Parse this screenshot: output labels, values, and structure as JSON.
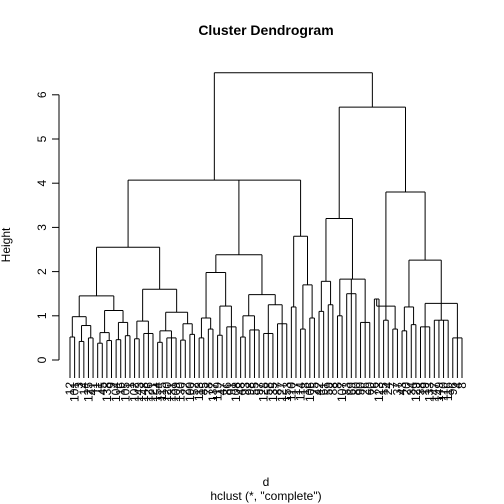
{
  "chart_data": {
    "type": "dendrogram",
    "title": "Cluster Dendrogram",
    "xlabel": "d",
    "sub": "hclust (*, \"complete\")",
    "ylabel": "Height",
    "yticks": [
      0,
      1,
      2,
      3,
      4,
      5,
      6
    ],
    "ylim": [
      0,
      6.5
    ],
    "color": "#000000",
    "root": {
      "h": 6.5,
      "c": [
        {
          "h": 4.07,
          "c": [
            {
              "h": 2.55,
              "c": [
                {
                  "h": 1.45,
                  "c": [
                    {
                      "h": 0.98,
                      "c": [
                        {
                          "h": 0.52,
                          "c": [
                            "12",
                            "101"
                          ]
                        },
                        {
                          "h": 0.78,
                          "c": [
                            {
                              "h": 0.42,
                              "c": [
                                "3",
                                "14"
                              ]
                            },
                            {
                              "h": 0.5,
                              "c": [
                                "125",
                                "41"
                              ]
                            }
                          ]
                        }
                      ]
                    },
                    {
                      "h": 1.12,
                      "c": [
                        {
                          "h": 0.62,
                          "c": [
                            {
                              "h": 0.38,
                              "c": [
                                "11",
                                "45"
                              ]
                            },
                            {
                              "h": 0.44,
                              "c": [
                                "138",
                                "9"
                              ]
                            }
                          ]
                        },
                        {
                          "h": 0.85,
                          "c": [
                            {
                              "h": 0.46,
                              "c": [
                                "104",
                                "16"
                              ]
                            },
                            {
                              "h": 0.55,
                              "c": [
                                "105",
                                "1"
                              ]
                            }
                          ]
                        }
                      ]
                    }
                  ]
                },
                {
                  "h": 1.6,
                  "c": [
                    {
                      "h": 0.88,
                      "c": [
                        {
                          "h": 0.48,
                          "c": [
                            "102",
                            "143"
                          ]
                        },
                        {
                          "h": 0.6,
                          "c": [
                            "148",
                            "126",
                            "121"
                          ]
                        }
                      ]
                    },
                    {
                      "h": 1.08,
                      "c": [
                        {
                          "h": 0.66,
                          "c": [
                            {
                              "h": 0.4,
                              "c": [
                                "154",
                                "115"
                              ]
                            },
                            {
                              "h": 0.5,
                              "c": [
                                "120",
                                "131",
                                "109"
                              ]
                            }
                          ]
                        },
                        {
                          "h": 0.82,
                          "c": [
                            {
                              "h": 0.45,
                              "c": [
                                "130",
                                "22"
                              ]
                            },
                            {
                              "h": 0.58,
                              "c": [
                                "100",
                                "52"
                              ]
                            }
                          ]
                        }
                      ]
                    }
                  ]
                }
              ]
            },
            {
              "h": 2.38,
              "c": [
                {
                  "h": 1.98,
                  "c": [
                    {
                      "h": 0.95,
                      "c": [
                        {
                          "h": 0.5,
                          "c": [
                            "113",
                            "85"
                          ]
                        },
                        {
                          "h": 0.7,
                          "c": [
                            "78",
                            "137"
                          ]
                        }
                      ]
                    },
                    {
                      "h": 1.22,
                      "c": [
                        {
                          "h": 0.56,
                          "c": [
                            "119",
                            "47"
                          ]
                        },
                        {
                          "h": 0.75,
                          "c": [
                            "86",
                            "91",
                            "108"
                          ]
                        }
                      ]
                    }
                  ]
                },
                {
                  "h": 1.48,
                  "c": [
                    {
                      "h": 1.0,
                      "c": [
                        {
                          "h": 0.52,
                          "c": [
                            "48",
                            "93"
                          ]
                        },
                        {
                          "h": 0.68,
                          "c": [
                            "98",
                            "55",
                            "97"
                          ]
                        }
                      ]
                    },
                    {
                      "h": 1.25,
                      "c": [
                        {
                          "h": 0.6,
                          "c": [
                            "128",
                            "58",
                            "135"
                          ]
                        },
                        {
                          "h": 0.82,
                          "c": [
                            "87",
                            "127",
                            "153"
                          ]
                        }
                      ]
                    }
                  ]
                }
              ]
            },
            {
              "h": 2.8,
              "c": [
                {
                  "h": 1.2,
                  "c": [
                    "110",
                    "17"
                  ]
                },
                {
                  "h": 1.7,
                  "c": [
                    {
                      "h": 0.7,
                      "c": [
                        "114",
                        "18"
                      ]
                    },
                    {
                      "h": 0.95,
                      "c": [
                        "106",
                        "25"
                      ]
                    }
                  ]
                }
              ]
            }
          ]
        },
        {
          "h": 5.72,
          "c": [
            {
              "h": 3.2,
              "c": [
                {
                  "h": 1.78,
                  "c": [
                    {
                      "h": 1.1,
                      "c": [
                        "42",
                        "61"
                      ]
                    },
                    {
                      "h": 1.25,
                      "c": [
                        "59",
                        "88"
                      ]
                    }
                  ]
                },
                {
                  "h": 1.83,
                  "c": [
                    {
                      "h": 1.0,
                      "c": [
                        "8",
                        "107"
                      ]
                    },
                    {
                      "h": 1.5,
                      "c": [
                        "83",
                        "69",
                        "80"
                      ]
                    },
                    {
                      "h": 0.85,
                      "c": [
                        "90",
                        "26",
                        "60"
                      ]
                    }
                  ]
                }
              ]
            },
            {
              "h": 3.8,
              "c": [
                {
                  "h": 1.22,
                  "c": [
                    {
                      "h": 1.38,
                      "c": [
                        "76",
                        "123"
                      ]
                    },
                    {
                      "h": 0.9,
                      "c": [
                        "15",
                        "24"
                      ]
                    },
                    {
                      "h": 0.7,
                      "c": [
                        "7",
                        "37"
                      ]
                    }
                  ]
                },
                {
                  "h": 2.26,
                  "c": [
                    {
                      "h": 1.2,
                      "c": [
                        {
                          "h": 0.66,
                          "c": [
                            "43",
                            "20"
                          ]
                        },
                        {
                          "h": 0.8,
                          "c": [
                            "34",
                            "129"
                          ]
                        }
                      ]
                    },
                    {
                      "h": 1.28,
                      "c": [
                        {
                          "h": 0.75,
                          "c": [
                            "38",
                            "19",
                            "133"
                          ]
                        },
                        {
                          "h": 0.9,
                          "c": [
                            "147",
                            "149",
                            "110",
                            "116"
                          ]
                        },
                        {
                          "h": 0.5,
                          "c": [
                            "96",
                            "4",
                            "8"
                          ]
                        }
                      ]
                    }
                  ]
                }
              ]
            }
          ]
        }
      ]
    }
  }
}
